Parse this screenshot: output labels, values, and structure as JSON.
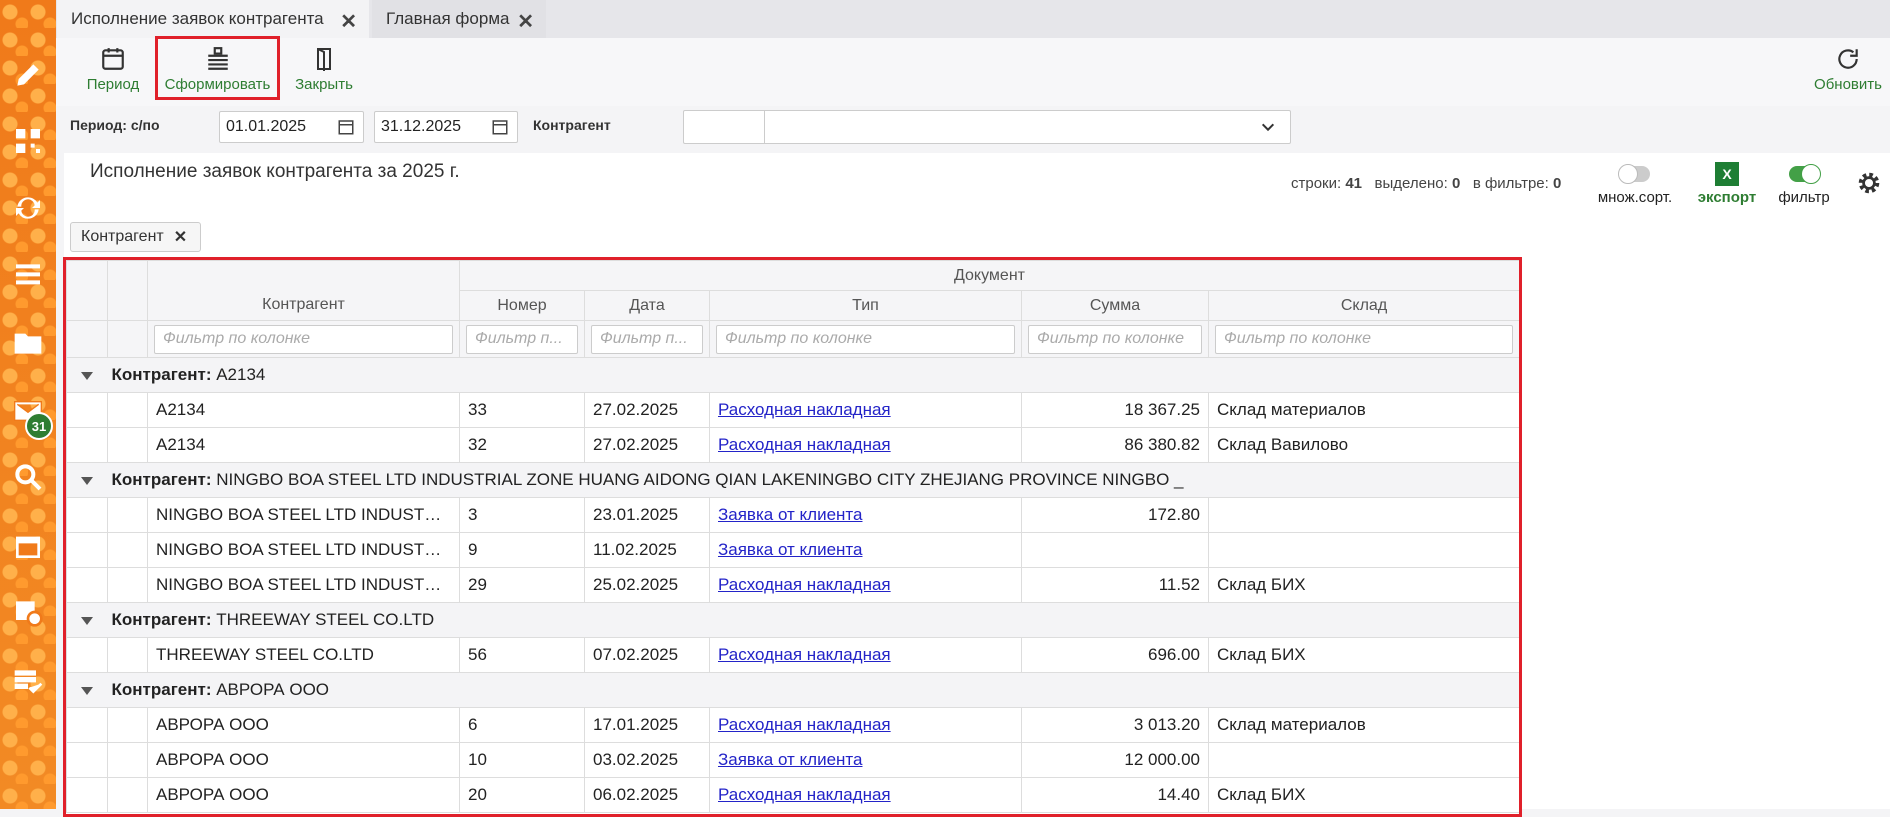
{
  "tabs": [
    "Исполнение заявок контрагента",
    "Главная форма"
  ],
  "sidebar": {
    "badge": "31"
  },
  "toolbar": {
    "period": "Период",
    "generate": "Сформировать",
    "close": "Закрыть",
    "refresh": "Обновить"
  },
  "filter": {
    "period_label": "Период: с/по",
    "date_from": "01.01.2025",
    "date_to": "31.12.2025",
    "contractor_label": "Контрагент"
  },
  "report": {
    "title": "Исполнение заявок контрагента за 2025 г.",
    "rows_label": "строки:",
    "rows": "41",
    "selected_label": "выделено:",
    "selected": "0",
    "in_filter_label": "в фильтре:",
    "in_filter": "0",
    "multisort": "множ.сорт.",
    "export_icon": "X",
    "export": "экспорт",
    "filter": "фильтр"
  },
  "group_chip": "Контрагент",
  "table": {
    "group_header": "Документ",
    "columns": [
      "Контрагент",
      "Номер",
      "Дата",
      "Тип",
      "Сумма",
      "Склад"
    ],
    "filter_placeholders": [
      "Фильтр по колонке",
      "Фильтр п...",
      "Фильтр п...",
      "Фильтр по колонке",
      "Фильтр по колонке",
      "Фильтр по колонке"
    ],
    "group_label": "Контрагент:",
    "groups": [
      {
        "value": "A2134",
        "rows": [
          [
            "A2134",
            "33",
            "27.02.2025",
            "Расходная накладная",
            "18 367.25",
            "Склад материалов"
          ],
          [
            "A2134",
            "32",
            "27.02.2025",
            "Расходная накладная",
            "86 380.82",
            "Склад Вавилово"
          ]
        ]
      },
      {
        "value": "NINGBO BOA STEEL LTD INDUSTRIAL ZONE HUANG AIDONG QIAN LAKENINGBO CITY ZHEJIANG PROVINCE NINGBO _",
        "rows": [
          [
            "NINGBO BOA STEEL LTD INDUSTRIAL...",
            "3",
            "23.01.2025",
            "Заявка от клиента",
            "172.80",
            null
          ],
          [
            "NINGBO BOA STEEL LTD INDUSTRIAL...",
            "9",
            "11.02.2025",
            "Заявка от клиента",
            null,
            null
          ],
          [
            "NINGBO BOA STEEL LTD INDUSTRIAL...",
            "29",
            "25.02.2025",
            "Расходная накладная",
            "11.52",
            "Склад БИХ"
          ]
        ]
      },
      {
        "value": "THREEWAY STEEL CO.LTD",
        "rows": [
          [
            "THREEWAY STEEL CO.LTD",
            "56",
            "07.02.2025",
            "Расходная накладная",
            "696.00",
            "Склад БИХ"
          ]
        ]
      },
      {
        "value": "АВРОРА ООО",
        "rows": [
          [
            "АВРОРА ООО",
            "6",
            "17.01.2025",
            "Расходная накладная",
            "3 013.20",
            "Склад материалов"
          ],
          [
            "АВРОРА ООО",
            "10",
            "03.02.2025",
            "Заявка от клиента",
            "12 000.00",
            null
          ],
          [
            "АВРОРА ООО",
            "20",
            "06.02.2025",
            "Расходная накладная",
            "14.40",
            "Склад БИХ"
          ]
        ]
      }
    ]
  }
}
